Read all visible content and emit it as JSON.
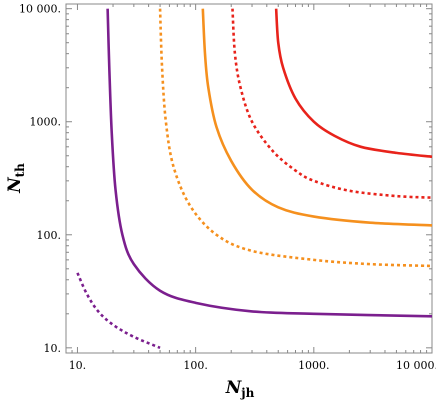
{
  "chart_data": {
    "type": "line",
    "title": "",
    "xlabel": {
      "base": "N",
      "sub": "jh"
    },
    "ylabel": {
      "base": "N",
      "sub": "th"
    },
    "xscale": "log",
    "yscale": "log",
    "xlim": [
      8,
      10000
    ],
    "ylim": [
      9,
      11000
    ],
    "grid": false,
    "legend": "none",
    "xticks": [
      {
        "value": 10,
        "label": "10."
      },
      {
        "value": 100,
        "label": "100."
      },
      {
        "value": 1000,
        "label": "1000."
      },
      {
        "value": 10000,
        "label": "10 000."
      }
    ],
    "yticks": [
      {
        "value": 10,
        "label": "10."
      },
      {
        "value": 100,
        "label": "100."
      },
      {
        "value": 1000,
        "label": "1000."
      },
      {
        "value": 10000,
        "label": "10 000."
      }
    ],
    "series": [
      {
        "color": "#7b1f8e",
        "dash": "dotted",
        "points": [
          [
            10,
            46
          ],
          [
            12,
            30
          ],
          [
            15,
            21
          ],
          [
            20,
            16
          ],
          [
            30,
            12.5
          ],
          [
            50,
            10
          ]
        ]
      },
      {
        "color": "#7b1f8e",
        "dash": "solid",
        "points": [
          [
            18,
            10000
          ],
          [
            18.6,
            3000
          ],
          [
            19.5,
            800
          ],
          [
            21,
            250
          ],
          [
            24,
            100
          ],
          [
            30,
            55
          ],
          [
            50,
            32
          ],
          [
            100,
            25
          ],
          [
            300,
            21
          ],
          [
            1000,
            20
          ],
          [
            10000,
            19
          ]
        ]
      },
      {
        "color": "#f5901e",
        "dash": "dotted",
        "points": [
          [
            50,
            10000
          ],
          [
            52,
            3000
          ],
          [
            56,
            1000
          ],
          [
            65,
            400
          ],
          [
            90,
            180
          ],
          [
            150,
            100
          ],
          [
            300,
            72
          ],
          [
            1000,
            60
          ],
          [
            3000,
            55
          ],
          [
            10000,
            53
          ]
        ]
      },
      {
        "color": "#f5901e",
        "dash": "solid",
        "points": [
          [
            115,
            10000
          ],
          [
            120,
            4000
          ],
          [
            128,
            2000
          ],
          [
            150,
            900
          ],
          [
            200,
            450
          ],
          [
            300,
            250
          ],
          [
            500,
            175
          ],
          [
            1000,
            145
          ],
          [
            3000,
            128
          ],
          [
            10000,
            121
          ]
        ]
      },
      {
        "color": "#e8231b",
        "dash": "dotted",
        "points": [
          [
            205,
            10000
          ],
          [
            215,
            4000
          ],
          [
            240,
            2000
          ],
          [
            300,
            1000
          ],
          [
            450,
            550
          ],
          [
            700,
            370
          ],
          [
            1000,
            300
          ],
          [
            2000,
            245
          ],
          [
            5000,
            220
          ],
          [
            10000,
            213
          ]
        ]
      },
      {
        "color": "#e8231b",
        "dash": "solid",
        "points": [
          [
            480,
            10000
          ],
          [
            500,
            5000
          ],
          [
            550,
            3000
          ],
          [
            700,
            1600
          ],
          [
            1000,
            1000
          ],
          [
            1500,
            750
          ],
          [
            2500,
            600
          ],
          [
            5000,
            530
          ],
          [
            10000,
            490
          ]
        ]
      }
    ]
  }
}
